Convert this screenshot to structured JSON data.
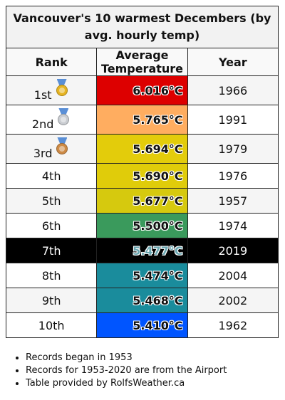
{
  "title": "Vancouver's 10 warmest Decembers (by avg. hourly temp)",
  "headers": {
    "rank": "Rank",
    "temp": "Average Temperature",
    "year": "Year"
  },
  "rows": [
    {
      "rank": "1st",
      "medal": "gold-medal-icon",
      "medal_color": "#e6b422",
      "temp": "6.016°C",
      "year": "1966",
      "color": "#dd0000"
    },
    {
      "rank": "2nd",
      "medal": "silver-medal-icon",
      "medal_color": "#c9ccd1",
      "temp": "5.765°C",
      "year": "1991",
      "color": "#ffad60"
    },
    {
      "rank": "3rd",
      "medal": "bronze-medal-icon",
      "medal_color": "#cd8a45",
      "temp": "5.694°C",
      "year": "1979",
      "color": "#e3cc0b"
    },
    {
      "rank": "4th",
      "temp": "5.690°C",
      "year": "1976",
      "color": "#e0cc0a"
    },
    {
      "rank": "5th",
      "temp": "5.677°C",
      "year": "1957",
      "color": "#d6c90e"
    },
    {
      "rank": "6th",
      "temp": "5.500°C",
      "year": "1974",
      "color": "#3a9a5c"
    },
    {
      "rank": "7th",
      "temp": "5.477°C",
      "year": "2019",
      "color": "#000000",
      "highlight": true
    },
    {
      "rank": "8th",
      "temp": "5.474°C",
      "year": "2004",
      "color": "#1a8c9c"
    },
    {
      "rank": "9th",
      "temp": "5.468°C",
      "year": "2002",
      "color": "#1a8c9c"
    },
    {
      "rank": "10th",
      "temp": "5.410°C",
      "year": "1962",
      "color": "#0055ff"
    }
  ],
  "notes": [
    "Records began in 1953",
    "Records for 1953-2020 are from the Airport",
    "Table provided by RolfsWeather.ca"
  ]
}
